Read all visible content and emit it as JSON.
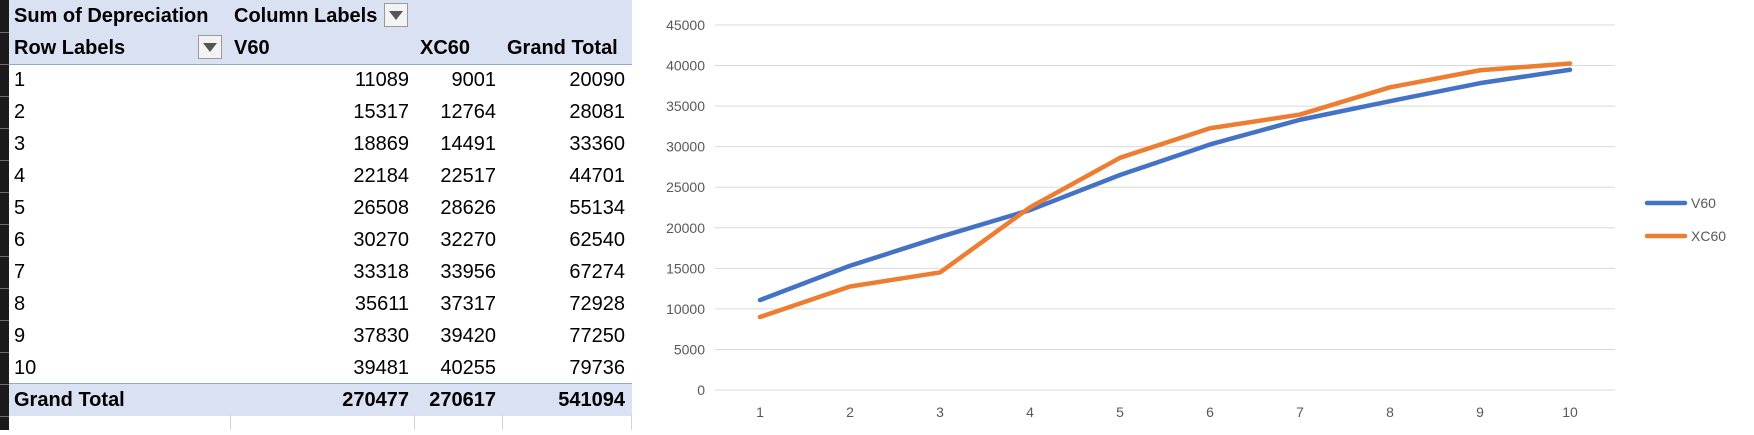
{
  "pivot": {
    "value_field": "Sum of Depreciation",
    "column_labels": "Column Labels",
    "row_labels": "Row Labels",
    "columns": [
      "V60",
      "XC60",
      "Grand Total"
    ],
    "rows": [
      {
        "label": "1",
        "values": [
          "11089",
          "9001",
          "20090"
        ]
      },
      {
        "label": "2",
        "values": [
          "15317",
          "12764",
          "28081"
        ]
      },
      {
        "label": "3",
        "values": [
          "18869",
          "14491",
          "33360"
        ]
      },
      {
        "label": "4",
        "values": [
          "22184",
          "22517",
          "44701"
        ]
      },
      {
        "label": "5",
        "values": [
          "26508",
          "28626",
          "55134"
        ]
      },
      {
        "label": "6",
        "values": [
          "30270",
          "32270",
          "62540"
        ]
      },
      {
        "label": "7",
        "values": [
          "33318",
          "33956",
          "67274"
        ]
      },
      {
        "label": "8",
        "values": [
          "35611",
          "37317",
          "72928"
        ]
      },
      {
        "label": "9",
        "values": [
          "37830",
          "39420",
          "77250"
        ]
      },
      {
        "label": "10",
        "values": [
          "39481",
          "40255",
          "79736"
        ]
      }
    ],
    "grand_total": {
      "label": "Grand Total",
      "values": [
        "270477",
        "270617",
        "541094"
      ]
    },
    "filter_icon": "chevron-down-icon"
  },
  "chart_data": {
    "type": "line",
    "x": [
      1,
      2,
      3,
      4,
      5,
      6,
      7,
      8,
      9,
      10
    ],
    "series": [
      {
        "name": "V60",
        "color": "#4472c4",
        "values": [
          11089,
          15317,
          18869,
          22184,
          26508,
          30270,
          33318,
          35611,
          37830,
          39481
        ]
      },
      {
        "name": "XC60",
        "color": "#ed7d31",
        "values": [
          9001,
          12764,
          14491,
          22517,
          28626,
          32270,
          33956,
          37317,
          39420,
          40255
        ]
      }
    ],
    "ylim": [
      0,
      45000
    ],
    "yticks": [
      "0",
      "5000",
      "10000",
      "15000",
      "20000",
      "25000",
      "30000",
      "35000",
      "40000",
      "45000"
    ],
    "xticks": [
      "1",
      "2",
      "3",
      "4",
      "5",
      "6",
      "7",
      "8",
      "9",
      "10"
    ],
    "grid": true,
    "legend": "right",
    "gridline_color": "#d9d9d9"
  }
}
